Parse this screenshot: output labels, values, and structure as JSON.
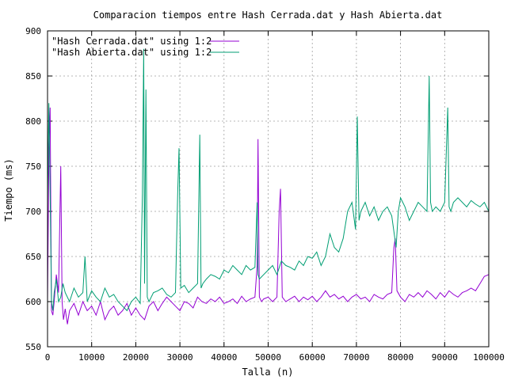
{
  "chart_data": {
    "type": "line",
    "title": "Comparacion tiempos entre Hash Cerrada.dat y Hash Abierta.dat",
    "xlabel": "Talla (n)",
    "ylabel": "Tiempo (ms)",
    "xlim": [
      0,
      100000
    ],
    "ylim": [
      550,
      900
    ],
    "xticks": [
      0,
      10000,
      20000,
      30000,
      40000,
      50000,
      60000,
      70000,
      80000,
      90000,
      100000
    ],
    "yticks": [
      550,
      600,
      650,
      700,
      750,
      800,
      850,
      900
    ],
    "grid": true,
    "legend_position": "top-left",
    "series": [
      {
        "name": "\"Hash Cerrada.dat\" using 1:2",
        "color": "#9400d3",
        "x": [
          0,
          300,
          600,
          900,
          1200,
          1500,
          2000,
          2500,
          3000,
          3300,
          3600,
          4000,
          4500,
          5000,
          6000,
          7000,
          8000,
          9000,
          10000,
          11000,
          12000,
          13000,
          14000,
          15000,
          16000,
          17000,
          18000,
          19000,
          20000,
          21000,
          22000,
          23000,
          24000,
          25000,
          26000,
          27000,
          28000,
          29000,
          30000,
          31000,
          32000,
          33000,
          34000,
          35000,
          36000,
          37000,
          38000,
          39000,
          40000,
          41000,
          42000,
          43000,
          44000,
          45000,
          46000,
          47000,
          47500,
          47700,
          48000,
          48500,
          49000,
          50000,
          51000,
          52000,
          52500,
          52800,
          53200,
          54000,
          55000,
          56000,
          57000,
          58000,
          59000,
          60000,
          61000,
          62000,
          63000,
          64000,
          65000,
          66000,
          67000,
          68000,
          69000,
          70000,
          71000,
          72000,
          73000,
          74000,
          75000,
          76000,
          77000,
          78000,
          78500,
          78800,
          79200,
          80000,
          81000,
          82000,
          83000,
          84000,
          85000,
          86000,
          87000,
          88000,
          89000,
          90000,
          91000,
          92000,
          93000,
          94000,
          95000,
          96000,
          97000,
          98000,
          99000,
          100000
        ],
        "values": [
          600,
          760,
          815,
          590,
          585,
          600,
          630,
          610,
          750,
          600,
          580,
          592,
          575,
          590,
          598,
          585,
          600,
          590,
          595,
          585,
          600,
          580,
          590,
          595,
          585,
          590,
          598,
          585,
          593,
          585,
          580,
          595,
          600,
          590,
          598,
          605,
          600,
          595,
          590,
          600,
          598,
          593,
          605,
          600,
          598,
          603,
          600,
          605,
          598,
          600,
          603,
          598,
          606,
          600,
          603,
          605,
          640,
          780,
          605,
          600,
          603,
          605,
          600,
          605,
          700,
          725,
          605,
          600,
          603,
          606,
          600,
          605,
          602,
          606,
          600,
          605,
          612,
          605,
          608,
          603,
          606,
          600,
          605,
          608,
          603,
          605,
          600,
          608,
          605,
          603,
          608,
          610,
          660,
          670,
          612,
          605,
          600,
          608,
          605,
          610,
          605,
          612,
          608,
          603,
          610,
          605,
          612,
          608,
          605,
          610,
          612,
          615,
          612,
          620,
          628,
          630
        ]
      },
      {
        "name": "\"Hash Abierta.dat\" using 1:2",
        "color": "#009e73",
        "x": [
          0,
          300,
          600,
          900,
          1200,
          1500,
          2000,
          2500,
          3000,
          3500,
          4000,
          5000,
          6000,
          7000,
          8000,
          8500,
          9000,
          10000,
          11000,
          12000,
          13000,
          14000,
          15000,
          16000,
          17000,
          18000,
          19000,
          20000,
          21000,
          21500,
          21800,
          22000,
          22300,
          22600,
          23000,
          24000,
          25000,
          26000,
          27000,
          28000,
          29000,
          29500,
          29800,
          30200,
          31000,
          32000,
          33000,
          34000,
          34500,
          34800,
          35200,
          36000,
          37000,
          38000,
          39000,
          40000,
          41000,
          42000,
          43000,
          44000,
          45000,
          46000,
          47000,
          47500,
          47700,
          48000,
          49000,
          50000,
          51000,
          52000,
          53000,
          54000,
          55000,
          56000,
          57000,
          58000,
          59000,
          60000,
          61000,
          62000,
          63000,
          64000,
          65000,
          66000,
          67000,
          68000,
          69000,
          69800,
          70200,
          70600,
          71000,
          72000,
          73000,
          74000,
          75000,
          76000,
          77000,
          78000,
          79000,
          79500,
          80000,
          81000,
          82000,
          83000,
          84000,
          85000,
          86000,
          86500,
          86800,
          87200,
          88000,
          89000,
          90000,
          90700,
          91000,
          91400,
          92000,
          93000,
          94000,
          95000,
          96000,
          97000,
          98000,
          99000,
          100000
        ],
        "values": [
          710,
          820,
          720,
          600,
          590,
          610,
          625,
          600,
          605,
          620,
          610,
          600,
          615,
          605,
          610,
          650,
          600,
          612,
          605,
          600,
          615,
          605,
          608,
          600,
          595,
          590,
          600,
          605,
          598,
          720,
          880,
          620,
          835,
          605,
          600,
          610,
          612,
          615,
          608,
          605,
          610,
          720,
          770,
          615,
          618,
          610,
          615,
          620,
          785,
          615,
          620,
          625,
          630,
          628,
          625,
          635,
          632,
          640,
          635,
          630,
          640,
          635,
          638,
          710,
          630,
          625,
          630,
          635,
          640,
          630,
          645,
          640,
          638,
          635,
          645,
          640,
          650,
          648,
          655,
          640,
          650,
          675,
          660,
          655,
          670,
          700,
          710,
          680,
          805,
          690,
          700,
          710,
          695,
          705,
          690,
          700,
          705,
          695,
          660,
          700,
          715,
          705,
          690,
          700,
          710,
          705,
          700,
          850,
          710,
          700,
          705,
          700,
          710,
          815,
          705,
          700,
          710,
          715,
          710,
          705,
          712,
          708,
          705,
          710,
          700
        ]
      }
    ]
  }
}
